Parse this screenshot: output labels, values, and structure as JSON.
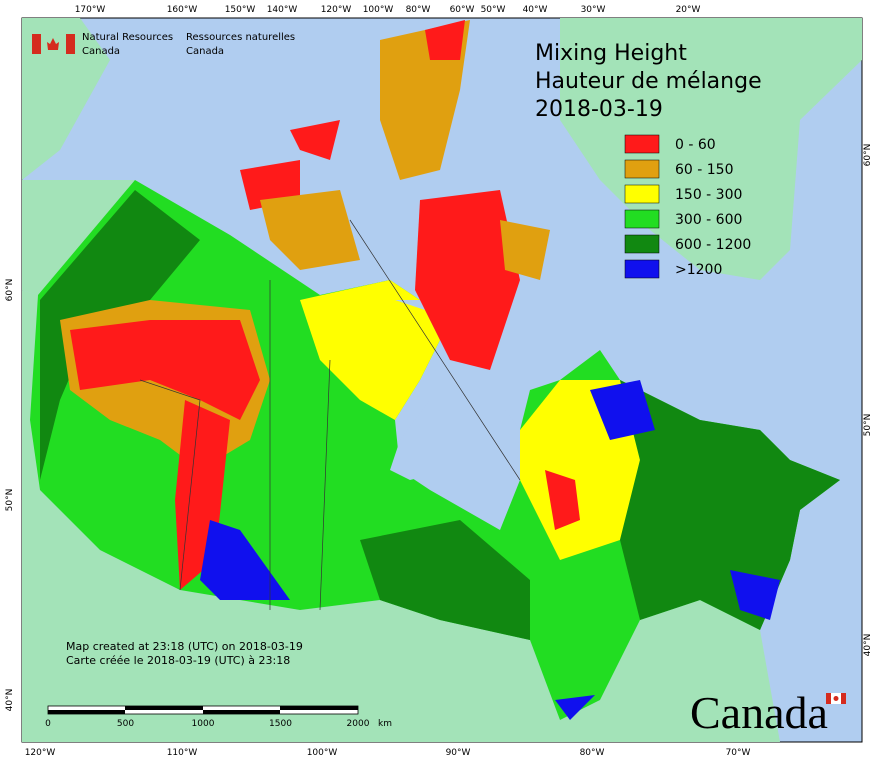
{
  "header": {
    "logo_en": [
      "Natural Resources",
      "Canada"
    ],
    "logo_fr": [
      "Ressources naturelles",
      "Canada"
    ]
  },
  "title": {
    "en": "Mixing Height",
    "fr": "Hauteur de mélange",
    "date": "2018-03-19"
  },
  "legend": [
    {
      "label": "0 - 60",
      "color": "#ff1a1a"
    },
    {
      "label": "60 - 150",
      "color": "#e0a010"
    },
    {
      "label": "150 - 300",
      "color": "#ffff00"
    },
    {
      "label": "300 - 600",
      "color": "#22dd22"
    },
    {
      "label": "600 - 1200",
      "color": "#118811"
    },
    {
      "label": ">1200",
      "color": "#1010ee"
    }
  ],
  "top_longitudes": [
    "170°W",
    "160°W",
    "150°W",
    "140°W",
    "120°W",
    "100°W",
    "80°W",
    "60°W",
    "50°W",
    "40°W",
    "30°W",
    "20°W"
  ],
  "bottom_longitudes": [
    "120°W",
    "110°W",
    "100°W",
    "90°W",
    "80°W",
    "70°W"
  ],
  "left_latitudes": [
    "60°N",
    "50°N",
    "40°N"
  ],
  "right_latitudes": [
    "60°N",
    "50°N",
    "40°N"
  ],
  "notes": [
    "Map created at 23:18 (UTC) on 2018-03-19",
    "Carte créée le 2018-03-19 (UTC) à 23:18"
  ],
  "scale_bar": {
    "labels": [
      "0",
      "500",
      "1000",
      "1500",
      "2000"
    ],
    "unit": "km"
  },
  "wordmark": "Canada"
}
